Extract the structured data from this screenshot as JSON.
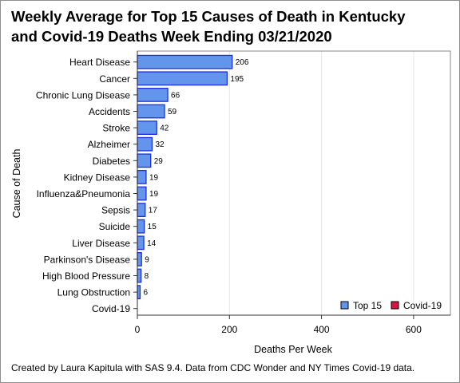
{
  "title_line1": "Weekly Average for Top 15 Causes of Death in Kentucky",
  "title_line2": "and Covid-19 Deaths Week Ending 03/21/2020",
  "footnote": "Created by Laura Kapitula with SAS 9.4. Data from CDC Wonder and NY Times Covid-19 data.",
  "colors": {
    "top15": "#6495ED",
    "top15_edge": "#1a2ee0",
    "covid": "#DC143C"
  },
  "chart_data": {
    "type": "bar",
    "orientation": "horizontal",
    "title": "Weekly Average for Top 15 Causes of Death in Kentucky and Covid-19 Deaths Week Ending 03/21/2020",
    "xlabel": "Deaths Per Week",
    "ylabel": "Cause of Death",
    "xlim": [
      0,
      680
    ],
    "xticks": [
      0,
      200,
      400,
      600
    ],
    "grid": "vertical",
    "legend_position": "bottom-right",
    "categories": [
      "Heart Disease",
      "Cancer",
      "Chronic Lung Disease",
      "Accidents",
      "Stroke",
      "Alzheimer",
      "Diabetes",
      "Kidney Disease",
      "Influenza&Pneumonia",
      "Sepsis",
      "Suicide",
      "Liver Disease",
      "Parkinson's Disease",
      "High Blood Pressure",
      "Lung Obstruction",
      "Covid-19"
    ],
    "series": [
      {
        "name": "Top 15",
        "values": [
          206,
          195,
          66,
          59,
          42,
          32,
          29,
          19,
          19,
          17,
          15,
          14,
          9,
          8,
          6,
          null
        ]
      },
      {
        "name": "Covid-19",
        "values": [
          null,
          null,
          null,
          null,
          null,
          null,
          null,
          null,
          null,
          null,
          null,
          null,
          null,
          null,
          null,
          0
        ]
      }
    ],
    "data_labels": [
      "206",
      "195",
      "66",
      "59",
      "42",
      "32",
      "29",
      "19",
      "19",
      "17",
      "15",
      "14",
      "9",
      "8",
      "6",
      ""
    ]
  }
}
